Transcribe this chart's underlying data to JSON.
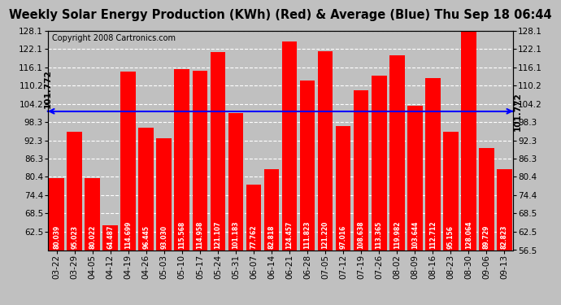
{
  "title": "Weekly Solar Energy Production (KWh) (Red) & Average (Blue) Thu Sep 18 06:44",
  "copyright": "Copyright 2008 Cartronics.com",
  "average": 101.772,
  "bar_color": "#FF0000",
  "avg_line_color": "#0000FF",
  "background_color": "#C0C0C0",
  "plot_bg_color": "#C0C0C0",
  "categories": [
    "03-22",
    "03-29",
    "04-05",
    "04-12",
    "04-19",
    "04-26",
    "05-03",
    "05-10",
    "05-17",
    "05-24",
    "05-31",
    "06-07",
    "06-14",
    "06-21",
    "06-28",
    "07-05",
    "07-12",
    "07-19",
    "07-26",
    "08-02",
    "08-09",
    "08-16",
    "08-23",
    "08-30",
    "09-06",
    "09-13"
  ],
  "values": [
    80.039,
    95.023,
    80.022,
    64.487,
    114.699,
    96.445,
    93.03,
    115.568,
    114.958,
    121.107,
    101.183,
    77.762,
    82.818,
    124.457,
    111.823,
    121.22,
    97.016,
    108.638,
    113.365,
    119.982,
    103.644,
    112.712,
    95.156,
    128.064,
    89.729,
    82.823
  ],
  "ylim_min": 56.5,
  "ylim_max": 128.1,
  "yticks_left": [
    62.5,
    68.5,
    74.4,
    80.4,
    86.3,
    92.3,
    98.3,
    104.2,
    110.2,
    116.1,
    122.1,
    128.1
  ],
  "yticks_right": [
    56.5,
    62.5,
    68.5,
    74.4,
    80.4,
    86.3,
    92.3,
    98.3,
    104.2,
    110.2,
    116.1,
    122.1,
    128.1
  ],
  "grid_color": "#FFFFFF",
  "title_fontsize": 10.5,
  "copyright_fontsize": 7,
  "tick_fontsize": 7.5,
  "bar_label_fontsize": 5.5,
  "avg_label": "101.772"
}
